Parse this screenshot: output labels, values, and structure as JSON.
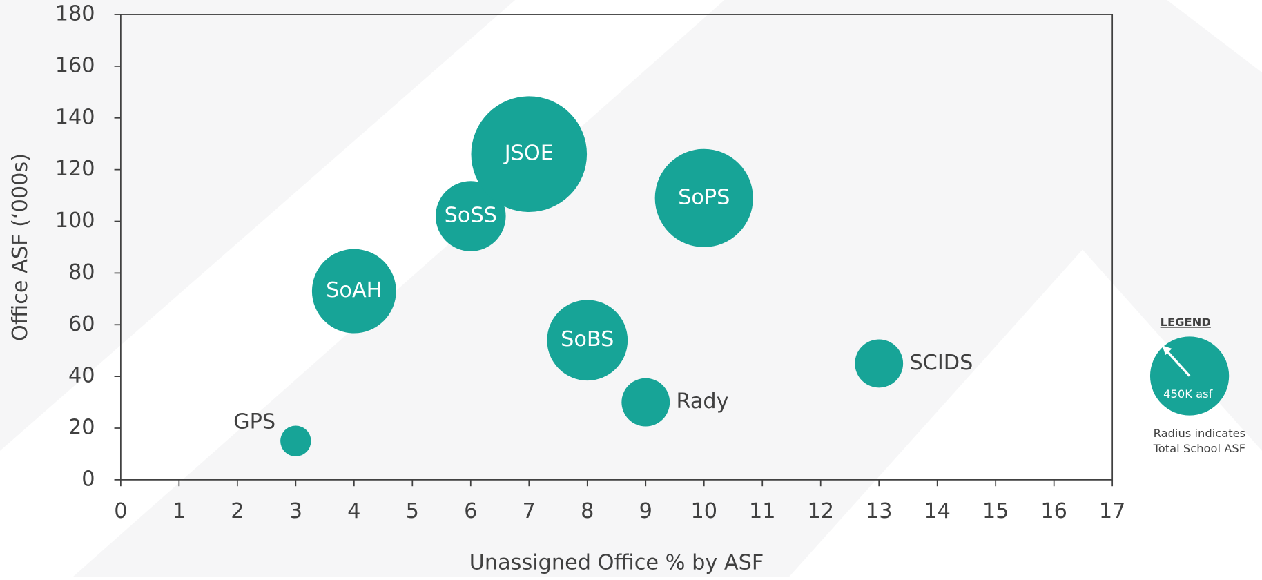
{
  "chart_data": {
    "type": "bubble",
    "x_label": "Unassigned Office % by ASF",
    "y_label": "Office ASF (‘000s)",
    "categories": [
      "GPS",
      "SoAH",
      "SoSS",
      "JSOE",
      "SoPS",
      "SoBS",
      "Rady",
      "SCIDS"
    ],
    "x": [
      3,
      4,
      6,
      7,
      10,
      8,
      9,
      13
    ],
    "values": [
      15,
      73,
      102,
      126,
      109,
      54,
      30,
      45
    ],
    "sizes": [
      175,
      480,
      400,
      660,
      560,
      460,
      275,
      275
    ],
    "color": "#17a497",
    "xlim": [
      0,
      17
    ],
    "xticks": [
      0,
      1,
      2,
      3,
      4,
      5,
      6,
      7,
      8,
      9,
      10,
      11,
      12,
      13,
      14,
      15,
      16,
      17
    ],
    "ylim": [
      0,
      180
    ],
    "yticks": [
      0,
      20,
      40,
      60,
      80,
      100,
      120,
      140,
      160,
      180
    ],
    "legend": {
      "title": "LEGEND",
      "size": 450,
      "size_label": "450K asf",
      "note": [
        "Radius indicates",
        "Total School ASF"
      ]
    }
  }
}
